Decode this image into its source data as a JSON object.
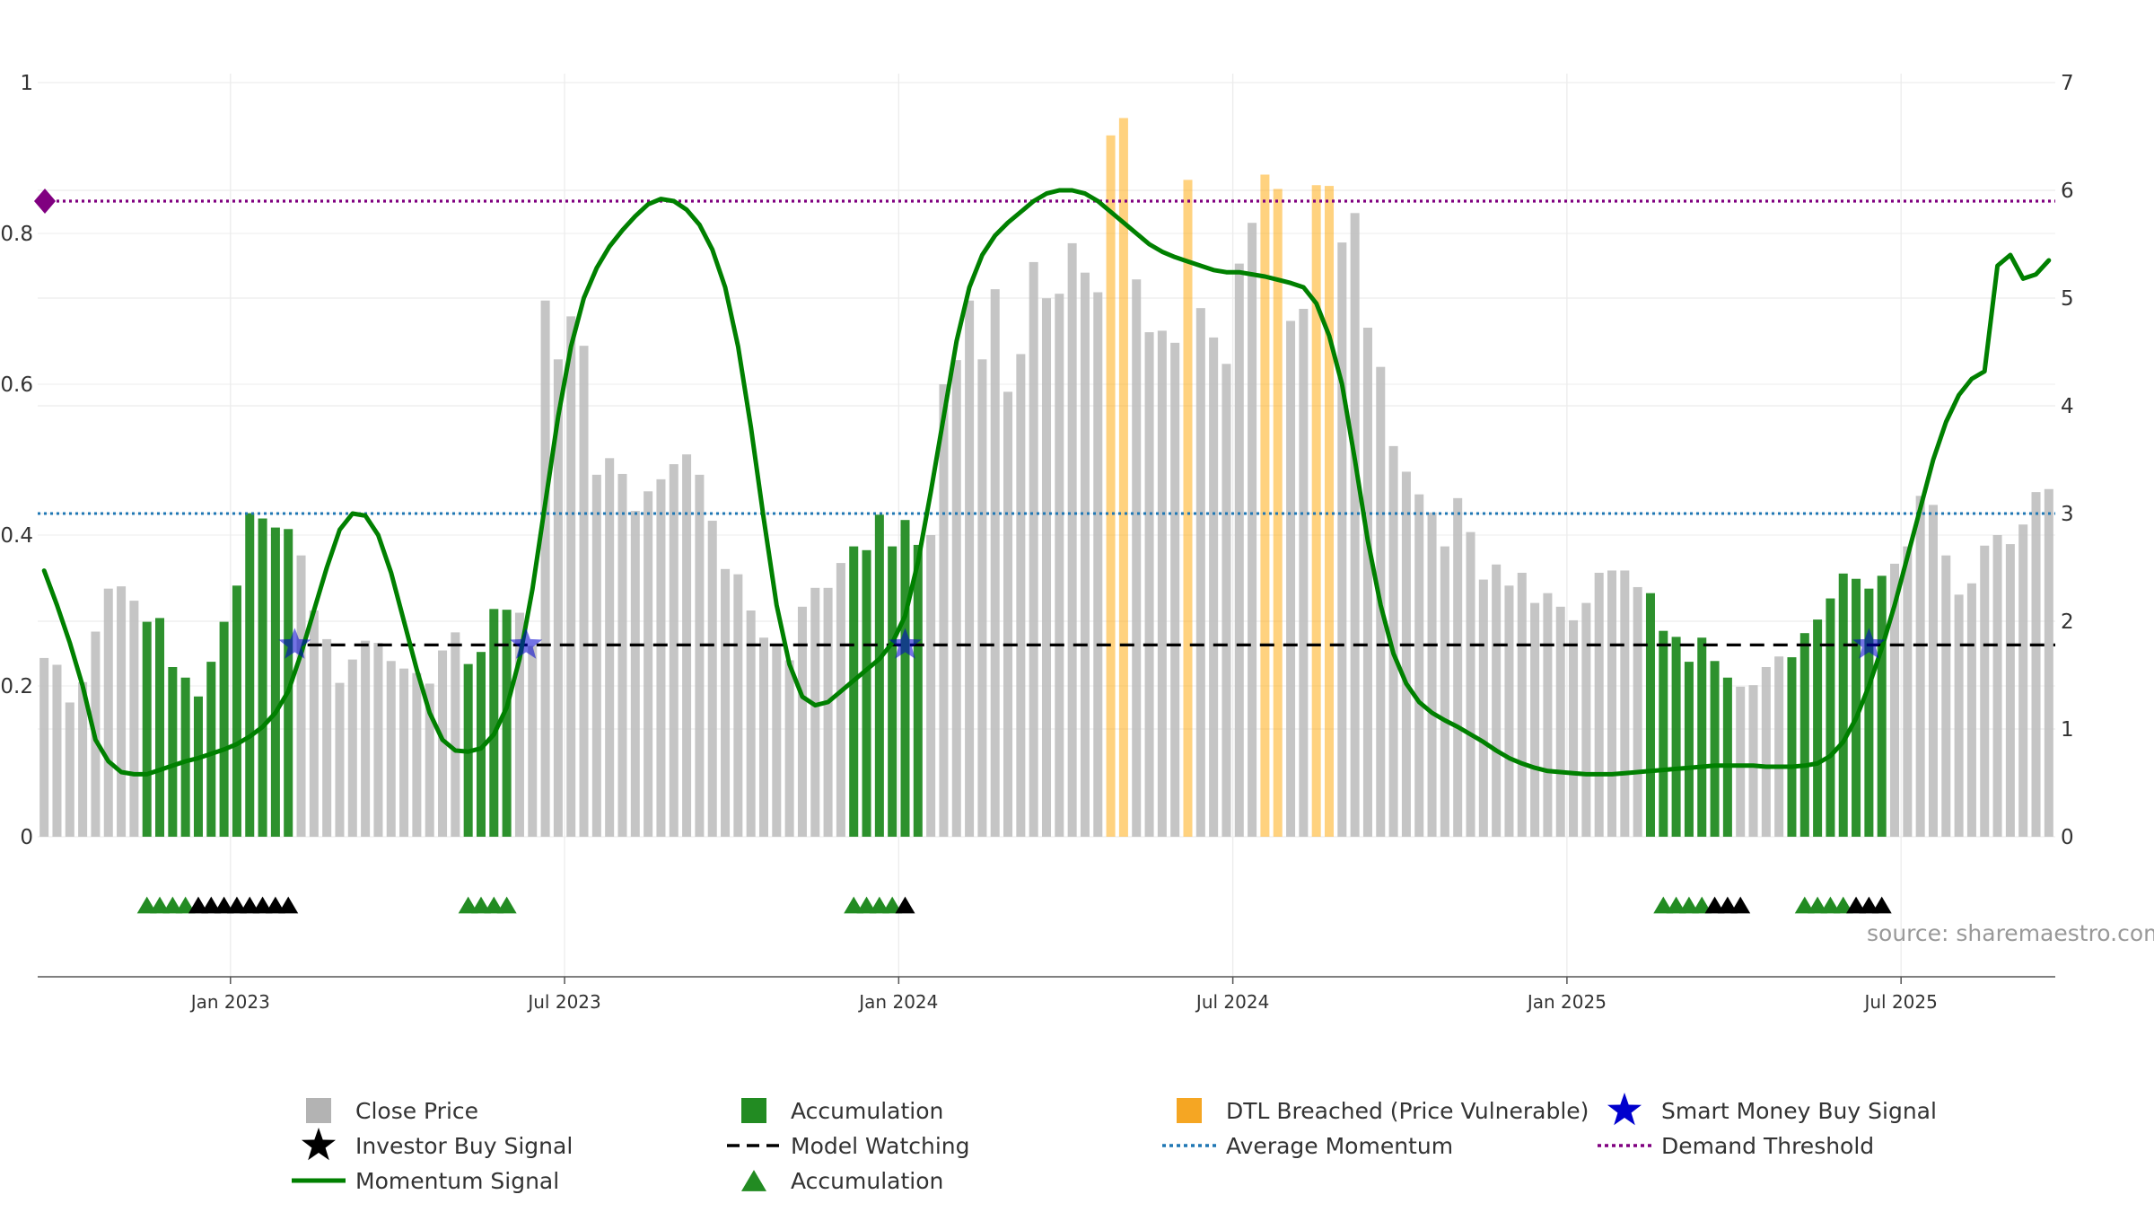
{
  "chart_data": {
    "type": "bar",
    "title": "",
    "source": "source: sharemaestro.com",
    "x_ticks": [
      {
        "label": "Jan 2023",
        "week": 14.5
      },
      {
        "label": "Jul 2023",
        "week": 40.5
      },
      {
        "label": "Jan 2024",
        "week": 66.5
      },
      {
        "label": "Jul 2024",
        "week": 92.5
      },
      {
        "label": "Jan 2025",
        "week": 118.5
      },
      {
        "label": "Jul 2025",
        "week": 144.5
      }
    ],
    "y_left": {
      "range": [
        0,
        1
      ],
      "ticks": [
        {
          "v": 0,
          "label": "0"
        },
        {
          "v": 0.2,
          "label": "0.2"
        },
        {
          "v": 0.4,
          "label": "0.4"
        },
        {
          "v": 0.6,
          "label": "0.6"
        },
        {
          "v": 0.8,
          "label": "0.8"
        },
        {
          "v": 1,
          "label": "1"
        }
      ]
    },
    "y_right": {
      "range": [
        0,
        7
      ],
      "ticks": [
        {
          "v": 0,
          "label": "0"
        },
        {
          "v": 1,
          "label": "1"
        },
        {
          "v": 2,
          "label": "2"
        },
        {
          "v": 3,
          "label": "3"
        },
        {
          "v": 4,
          "label": "4"
        },
        {
          "v": 5,
          "label": "5"
        },
        {
          "v": 6,
          "label": "6"
        },
        {
          "v": 7,
          "label": "7"
        }
      ]
    },
    "bars": {
      "values": [
        0.237,
        0.228,
        0.178,
        0.205,
        0.272,
        0.329,
        0.332,
        0.313,
        0.285,
        0.29,
        0.225,
        0.211,
        0.186,
        0.232,
        0.285,
        0.333,
        0.429,
        0.422,
        0.41,
        0.408,
        0.373,
        0.3,
        0.262,
        0.204,
        0.235,
        0.26,
        0.257,
        0.233,
        0.223,
        0.217,
        0.203,
        0.247,
        0.271,
        0.229,
        0.245,
        0.302,
        0.301,
        0.297,
        0.253,
        0.711,
        0.633,
        0.69,
        0.651,
        0.48,
        0.502,
        0.481,
        0.432,
        0.458,
        0.474,
        0.494,
        0.507,
        0.48,
        0.419,
        0.355,
        0.348,
        0.3,
        0.264,
        0.253,
        0.234,
        0.305,
        0.33,
        0.33,
        0.363,
        0.385,
        0.38,
        0.427,
        0.385,
        0.42,
        0.387,
        0.4,
        0.6,
        0.632,
        0.711,
        0.633,
        0.726,
        0.59,
        0.64,
        0.762,
        0.714,
        0.72,
        0.787,
        0.748,
        0.722,
        0.93,
        0.953,
        0.739,
        0.669,
        0.671,
        0.655,
        0.871,
        0.701,
        0.662,
        0.627,
        0.76,
        0.814,
        0.878,
        0.859,
        0.684,
        0.7,
        0.864,
        0.863,
        0.788,
        0.827,
        0.675,
        0.623,
        0.518,
        0.484,
        0.454,
        0.43,
        0.385,
        0.449,
        0.404,
        0.341,
        0.361,
        0.333,
        0.35,
        0.31,
        0.323,
        0.305,
        0.287,
        0.31,
        0.35,
        0.353,
        0.353,
        0.331,
        0.323,
        0.273,
        0.265,
        0.232,
        0.264,
        0.233,
        0.211,
        0.199,
        0.201,
        0.225,
        0.239,
        0.238,
        0.27,
        0.288,
        0.316,
        0.349,
        0.342,
        0.329,
        0.346,
        0.362,
        0.385,
        0.452,
        0.44,
        0.373,
        0.321,
        0.336,
        0.386,
        0.4,
        0.388,
        0.414,
        0.457,
        0.461
      ],
      "accumulation_weeks": [
        8,
        9,
        10,
        11,
        12,
        13,
        14,
        15,
        16,
        17,
        18,
        19,
        33,
        34,
        35,
        36,
        63,
        64,
        65,
        66,
        67,
        68,
        125,
        126,
        127,
        128,
        129,
        130,
        131,
        136,
        137,
        138,
        139,
        140,
        141,
        142,
        143
      ],
      "dtl_weeks": [
        83,
        84,
        89,
        95,
        96,
        99,
        100
      ]
    },
    "momentum_signal": [
      [
        0,
        2.47
      ],
      [
        1,
        2.15
      ],
      [
        2,
        1.8
      ],
      [
        3,
        1.4
      ],
      [
        4,
        0.9
      ],
      [
        5,
        0.7
      ],
      [
        6,
        0.6
      ],
      [
        7,
        0.58
      ],
      [
        8,
        0.58
      ],
      [
        9,
        0.62
      ],
      [
        10,
        0.66
      ],
      [
        11,
        0.7
      ],
      [
        12,
        0.73
      ],
      [
        13,
        0.77
      ],
      [
        14,
        0.81
      ],
      [
        15,
        0.86
      ],
      [
        16,
        0.93
      ],
      [
        17,
        1.02
      ],
      [
        18,
        1.15
      ],
      [
        19,
        1.35
      ],
      [
        20,
        1.7
      ],
      [
        21,
        2.1
      ],
      [
        22,
        2.5
      ],
      [
        23,
        2.85
      ],
      [
        24,
        3.0
      ],
      [
        25,
        2.98
      ],
      [
        26,
        2.8
      ],
      [
        27,
        2.45
      ],
      [
        28,
        2.0
      ],
      [
        29,
        1.55
      ],
      [
        30,
        1.15
      ],
      [
        31,
        0.9
      ],
      [
        32,
        0.8
      ],
      [
        33,
        0.79
      ],
      [
        34,
        0.82
      ],
      [
        35,
        0.95
      ],
      [
        36,
        1.2
      ],
      [
        37,
        1.65
      ],
      [
        38,
        2.3
      ],
      [
        39,
        3.1
      ],
      [
        40,
        3.9
      ],
      [
        41,
        4.55
      ],
      [
        42,
        5.0
      ],
      [
        43,
        5.28
      ],
      [
        44,
        5.48
      ],
      [
        45,
        5.63
      ],
      [
        46,
        5.76
      ],
      [
        47,
        5.87
      ],
      [
        48,
        5.92
      ],
      [
        49,
        5.9
      ],
      [
        50,
        5.82
      ],
      [
        51,
        5.68
      ],
      [
        52,
        5.45
      ],
      [
        53,
        5.1
      ],
      [
        54,
        4.55
      ],
      [
        55,
        3.8
      ],
      [
        56,
        2.95
      ],
      [
        57,
        2.15
      ],
      [
        58,
        1.6
      ],
      [
        59,
        1.3
      ],
      [
        60,
        1.22
      ],
      [
        61,
        1.25
      ],
      [
        62,
        1.35
      ],
      [
        63,
        1.45
      ],
      [
        64,
        1.55
      ],
      [
        65,
        1.65
      ],
      [
        66,
        1.8
      ],
      [
        67,
        2.05
      ],
      [
        68,
        2.55
      ],
      [
        69,
        3.2
      ],
      [
        70,
        3.9
      ],
      [
        71,
        4.6
      ],
      [
        72,
        5.1
      ],
      [
        73,
        5.4
      ],
      [
        74,
        5.58
      ],
      [
        75,
        5.7
      ],
      [
        76,
        5.8
      ],
      [
        77,
        5.9
      ],
      [
        78,
        5.97
      ],
      [
        79,
        6.0
      ],
      [
        80,
        6.0
      ],
      [
        81,
        5.97
      ],
      [
        82,
        5.9
      ],
      [
        83,
        5.8
      ],
      [
        84,
        5.7
      ],
      [
        85,
        5.6
      ],
      [
        86,
        5.5
      ],
      [
        87,
        5.43
      ],
      [
        88,
        5.38
      ],
      [
        89,
        5.34
      ],
      [
        90,
        5.3
      ],
      [
        91,
        5.26
      ],
      [
        92,
        5.24
      ],
      [
        93,
        5.24
      ],
      [
        94,
        5.22
      ],
      [
        95,
        5.2
      ],
      [
        96,
        5.17
      ],
      [
        97,
        5.14
      ],
      [
        98,
        5.1
      ],
      [
        99,
        4.95
      ],
      [
        100,
        4.65
      ],
      [
        101,
        4.2
      ],
      [
        102,
        3.5
      ],
      [
        103,
        2.75
      ],
      [
        104,
        2.15
      ],
      [
        105,
        1.7
      ],
      [
        106,
        1.42
      ],
      [
        107,
        1.25
      ],
      [
        108,
        1.15
      ],
      [
        109,
        1.08
      ],
      [
        110,
        1.02
      ],
      [
        111,
        0.95
      ],
      [
        112,
        0.88
      ],
      [
        113,
        0.8
      ],
      [
        114,
        0.73
      ],
      [
        115,
        0.68
      ],
      [
        116,
        0.64
      ],
      [
        117,
        0.61
      ],
      [
        118,
        0.6
      ],
      [
        119,
        0.59
      ],
      [
        120,
        0.58
      ],
      [
        121,
        0.58
      ],
      [
        122,
        0.58
      ],
      [
        123,
        0.59
      ],
      [
        124,
        0.6
      ],
      [
        125,
        0.61
      ],
      [
        126,
        0.62
      ],
      [
        127,
        0.63
      ],
      [
        128,
        0.64
      ],
      [
        129,
        0.65
      ],
      [
        130,
        0.66
      ],
      [
        131,
        0.66
      ],
      [
        132,
        0.66
      ],
      [
        133,
        0.66
      ],
      [
        134,
        0.65
      ],
      [
        135,
        0.65
      ],
      [
        136,
        0.65
      ],
      [
        137,
        0.66
      ],
      [
        138,
        0.68
      ],
      [
        139,
        0.75
      ],
      [
        140,
        0.88
      ],
      [
        141,
        1.1
      ],
      [
        142,
        1.4
      ],
      [
        143,
        1.75
      ],
      [
        144,
        2.15
      ],
      [
        145,
        2.6
      ],
      [
        146,
        3.05
      ],
      [
        147,
        3.5
      ],
      [
        148,
        3.85
      ],
      [
        149,
        4.1
      ],
      [
        150,
        4.25
      ],
      [
        151,
        4.32
      ],
      [
        152,
        5.3
      ],
      [
        153,
        5.4
      ],
      [
        154,
        5.18
      ],
      [
        155,
        5.22
      ],
      [
        156,
        5.35
      ]
    ],
    "average_momentum": 3.0,
    "demand_threshold": 5.9,
    "model_watching": {
      "level": 1.78,
      "weeks": [
        [
          20.5,
          36.5
        ],
        [
          36.5,
          156.5
        ]
      ]
    },
    "smart_money_buy_signals": [
      [
        19.5,
        1.78
      ],
      [
        37.5,
        1.78
      ],
      [
        67,
        1.78
      ],
      [
        142,
        1.78
      ]
    ],
    "accumulation_triangles": [
      8,
      9,
      10,
      11,
      33,
      34,
      35,
      36,
      63,
      64,
      65,
      66,
      126,
      127,
      128,
      129,
      137,
      138,
      139,
      140
    ],
    "investor_buy_triangles": [
      12,
      13,
      14,
      15,
      16,
      17,
      18,
      19,
      67,
      130,
      131,
      132,
      141,
      142,
      143
    ],
    "colors": {
      "close_price": "#c0c0c0",
      "accumulation": "#228b22",
      "dtl_breached": "#ffa500",
      "momentum": "#008000",
      "average_momentum": "#1f77b4",
      "demand_threshold": "#800080",
      "smart_money": "#0000cd",
      "investor": "#000000"
    },
    "legend": [
      {
        "label": "Close Price",
        "symbol": "square",
        "color": "#b3b3b3"
      },
      {
        "label": "Accumulation",
        "symbol": "square",
        "color": "#228b22"
      },
      {
        "label": "DTL Breached (Price Vulnerable)",
        "symbol": "square",
        "color": "#f5a623"
      },
      {
        "label": "Smart Money Buy Signal",
        "symbol": "star",
        "color": "#0000cd"
      },
      {
        "label": "Investor Buy Signal",
        "symbol": "star",
        "color": "#000000"
      },
      {
        "label": "Model Watching",
        "symbol": "dash",
        "color": "#000000"
      },
      {
        "label": "Average Momentum",
        "symbol": "dot",
        "color": "#1f77b4"
      },
      {
        "label": "Demand Threshold",
        "symbol": "dot",
        "color": "#800080"
      },
      {
        "label": "Momentum Signal",
        "symbol": "line",
        "color": "#008000"
      },
      {
        "label": "Accumulation",
        "symbol": "triangle",
        "color": "#228b22"
      }
    ]
  }
}
